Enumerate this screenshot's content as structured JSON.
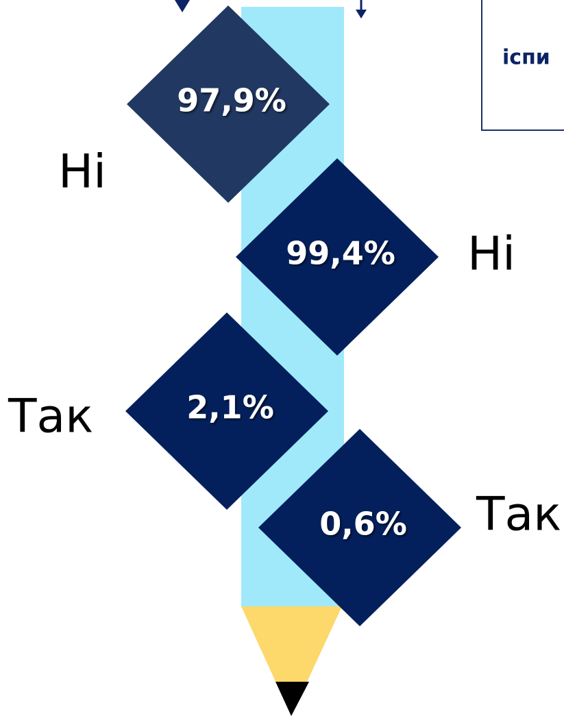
{
  "box": {
    "text": "іспи"
  },
  "nodes": [
    {
      "value": "97,9%",
      "answer": "Ні"
    },
    {
      "value": "99,4%",
      "answer": "Ні"
    },
    {
      "value": "2,1%",
      "answer": "Так"
    },
    {
      "value": "0,6%",
      "answer": "Так"
    }
  ]
}
